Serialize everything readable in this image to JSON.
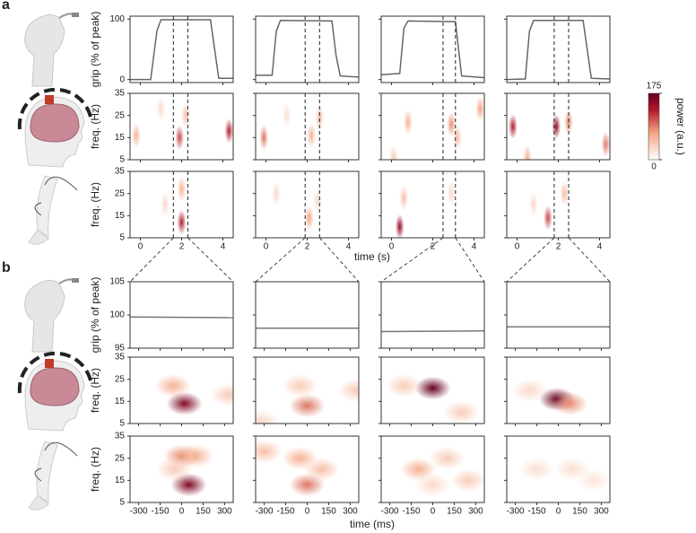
{
  "panel_labels": [
    "a",
    "b"
  ],
  "xlabels": [
    "time (s)",
    "time (ms)"
  ],
  "colorbar": {
    "label": "power (a.u.)",
    "lim": [
      0,
      175
    ],
    "ticks": [
      0,
      175
    ]
  },
  "chart_data": [
    {
      "type": "line",
      "ylabel": "grip (% of peak)",
      "color": "#666666",
      "x": [
        -0.5,
        0.5,
        0.8,
        1.0,
        3.4,
        3.6,
        3.8,
        4.5
      ],
      "values": [
        0,
        0,
        80,
        99,
        99,
        50,
        2,
        2
      ],
      "window": [
        1.6,
        2.3
      ],
      "xlim": [
        -0.5,
        4.5
      ],
      "ylim": [
        -5,
        105
      ],
      "xticks": [
        0,
        2,
        4
      ],
      "yticks": [
        0,
        100
      ]
    },
    {
      "type": "line",
      "color": "#666666",
      "x": [
        -0.5,
        0.3,
        0.5,
        0.7,
        3.2,
        3.4,
        3.6,
        4.5
      ],
      "values": [
        7,
        7,
        80,
        98,
        97,
        40,
        6,
        4
      ],
      "window": [
        1.9,
        2.6
      ],
      "xlim": [
        -0.5,
        4.5
      ],
      "ylim": [
        -5,
        105
      ],
      "xticks": [
        0,
        2,
        4
      ],
      "yticks": [
        0,
        100
      ]
    },
    {
      "type": "line",
      "color": "#666666",
      "x": [
        -0.5,
        0.4,
        0.6,
        0.8,
        3.1,
        3.25,
        3.4,
        4.5
      ],
      "values": [
        8,
        10,
        85,
        97,
        96,
        50,
        6,
        3
      ],
      "window": [
        2.5,
        3.1
      ],
      "xlim": [
        -0.5,
        4.5
      ],
      "ylim": [
        -5,
        105
      ],
      "xticks": [
        0,
        2,
        4
      ],
      "yticks": [
        0,
        100
      ]
    },
    {
      "type": "line",
      "color": "#666666",
      "x": [
        -0.5,
        0.4,
        0.6,
        0.8,
        3.2,
        3.4,
        3.6,
        4.5
      ],
      "values": [
        0,
        1,
        80,
        98,
        98,
        50,
        2,
        1
      ],
      "window": [
        1.8,
        2.5
      ],
      "xlim": [
        -0.5,
        4.5
      ],
      "ylim": [
        -5,
        105
      ],
      "xticks": [
        0,
        2,
        4
      ],
      "yticks": [
        0,
        100
      ]
    },
    {
      "type": "heatmap",
      "ylabel": "freq. (Hz)",
      "x": [
        -0.2,
        1.9,
        2.2,
        4.3,
        1.0
      ],
      "y": [
        16,
        15,
        25,
        18,
        28
      ],
      "values": [
        60,
        110,
        50,
        130,
        30
      ],
      "xlim": [
        -0.5,
        4.5
      ],
      "ylim": [
        5,
        35
      ],
      "xticks": [
        0,
        2,
        4
      ],
      "yticks": [
        5,
        15,
        25,
        35
      ]
    },
    {
      "type": "heatmap",
      "x": [
        -0.1,
        2.2,
        2.6,
        1.0
      ],
      "y": [
        15,
        16,
        24,
        25
      ],
      "values": [
        90,
        60,
        50,
        25
      ],
      "xlim": [
        -0.5,
        4.5
      ],
      "ylim": [
        5,
        35
      ],
      "xticks": [
        0,
        2,
        4
      ],
      "yticks": [
        5,
        15,
        25,
        35
      ]
    },
    {
      "type": "heatmap",
      "x": [
        0.8,
        2.9,
        3.2,
        4.3,
        0.1
      ],
      "y": [
        22,
        21,
        15,
        28,
        6
      ],
      "values": [
        60,
        80,
        50,
        70,
        40
      ],
      "xlim": [
        -0.5,
        4.5
      ],
      "ylim": [
        5,
        35
      ],
      "xticks": [
        0,
        2,
        4
      ],
      "yticks": [
        5,
        15,
        25,
        35
      ]
    },
    {
      "type": "heatmap",
      "x": [
        -0.2,
        1.9,
        2.5,
        4.3,
        0.5
      ],
      "y": [
        20,
        20,
        22,
        12,
        6
      ],
      "values": [
        130,
        150,
        80,
        90,
        60
      ],
      "xlim": [
        -0.5,
        4.5
      ],
      "ylim": [
        5,
        35
      ],
      "xticks": [
        0,
        2,
        4
      ],
      "yticks": [
        5,
        15,
        25,
        35
      ]
    },
    {
      "type": "heatmap",
      "ylabel": "freq. (Hz)",
      "x": [
        2.0,
        2.0,
        1.2
      ],
      "y": [
        12,
        27,
        20
      ],
      "values": [
        130,
        60,
        30
      ],
      "xlim": [
        -0.5,
        4.5
      ],
      "ylim": [
        5,
        35
      ],
      "xticks": [
        0,
        2,
        4
      ],
      "yticks": [
        5,
        15,
        25,
        35
      ]
    },
    {
      "type": "heatmap",
      "x": [
        2.1,
        0.5,
        2.5
      ],
      "y": [
        14,
        25,
        22
      ],
      "values": [
        70,
        30,
        30
      ],
      "xlim": [
        -0.5,
        4.5
      ],
      "ylim": [
        5,
        35
      ],
      "xticks": [
        0,
        2,
        4
      ],
      "yticks": [
        5,
        15,
        25,
        35
      ]
    },
    {
      "type": "heatmap",
      "x": [
        0.4,
        0.6,
        2.9
      ],
      "y": [
        10,
        23,
        25
      ],
      "values": [
        150,
        50,
        30
      ],
      "xlim": [
        -0.5,
        4.5
      ],
      "ylim": [
        5,
        35
      ],
      "xticks": [
        0,
        2,
        4
      ],
      "yticks": [
        5,
        15,
        25,
        35
      ]
    },
    {
      "type": "heatmap",
      "x": [
        1.5,
        2.3,
        0.8
      ],
      "y": [
        14,
        25,
        20
      ],
      "values": [
        110,
        50,
        30
      ],
      "xlim": [
        -0.5,
        4.5
      ],
      "ylim": [
        5,
        35
      ],
      "xticks": [
        0,
        2,
        4
      ],
      "yticks": [
        5,
        15,
        25,
        35
      ]
    },
    {
      "type": "line",
      "ylabel": "grip (% of peak)",
      "color": "#777777",
      "x": [
        -360,
        360
      ],
      "values": [
        99.7,
        99.6
      ],
      "xlim": [
        -360,
        360
      ],
      "ylim": [
        95,
        105
      ],
      "xticks": [
        -300,
        -150,
        0,
        150,
        300
      ],
      "yticks": [
        95,
        100,
        105
      ]
    },
    {
      "type": "line",
      "color": "#777777",
      "x": [
        -360,
        360
      ],
      "values": [
        98.0,
        98.0
      ],
      "xlim": [
        -360,
        360
      ],
      "ylim": [
        95,
        105
      ],
      "xticks": [
        -300,
        -150,
        0,
        150,
        300
      ],
      "yticks": [
        95,
        100,
        105
      ]
    },
    {
      "type": "line",
      "color": "#777777",
      "x": [
        -360,
        360
      ],
      "values": [
        97.5,
        97.6
      ],
      "xlim": [
        -360,
        360
      ],
      "ylim": [
        95,
        105
      ],
      "xticks": [
        -300,
        -150,
        0,
        150,
        300
      ],
      "yticks": [
        95,
        100,
        105
      ]
    },
    {
      "type": "line",
      "color": "#777777",
      "x": [
        -360,
        360
      ],
      "values": [
        98.2,
        98.2
      ],
      "xlim": [
        -360,
        360
      ],
      "ylim": [
        95,
        105
      ],
      "xticks": [
        -300,
        -150,
        0,
        150,
        300
      ],
      "yticks": [
        95,
        100,
        105
      ]
    },
    {
      "type": "heatmap",
      "ylabel": "freq. (Hz)",
      "x": [
        20,
        -60,
        330
      ],
      "y": [
        14,
        22,
        18
      ],
      "values": [
        160,
        60,
        40
      ],
      "xlim": [
        -360,
        360
      ],
      "ylim": [
        5,
        35
      ],
      "xticks": [
        -300,
        -150,
        0,
        150,
        300
      ],
      "yticks": [
        5,
        15,
        25,
        35
      ]
    },
    {
      "type": "heatmap",
      "x": [
        0,
        -50,
        340,
        -320
      ],
      "y": [
        13,
        22,
        20,
        6
      ],
      "values": [
        90,
        40,
        40,
        30
      ],
      "xlim": [
        -360,
        360
      ],
      "ylim": [
        5,
        35
      ],
      "xticks": [
        -300,
        -150,
        0,
        150,
        300
      ],
      "yticks": [
        5,
        15,
        25,
        35
      ]
    },
    {
      "type": "heatmap",
      "x": [
        0,
        200,
        -200
      ],
      "y": [
        21,
        10,
        22
      ],
      "values": [
        175,
        40,
        40
      ],
      "xlim": [
        -360,
        360
      ],
      "ylim": [
        5,
        35
      ],
      "xticks": [
        -300,
        -150,
        0,
        150,
        300
      ],
      "yticks": [
        5,
        15,
        25,
        35
      ]
    },
    {
      "type": "heatmap",
      "x": [
        -10,
        80,
        -200
      ],
      "y": [
        16,
        14,
        20
      ],
      "values": [
        175,
        80,
        30
      ],
      "xlim": [
        -360,
        360
      ],
      "ylim": [
        5,
        35
      ],
      "xticks": [
        -300,
        -150,
        0,
        150,
        300
      ],
      "yticks": [
        5,
        15,
        25,
        35
      ]
    },
    {
      "type": "heatmap",
      "ylabel": "freq. (Hz)",
      "x": [
        50,
        0,
        100,
        -50
      ],
      "y": [
        13,
        26,
        26,
        20
      ],
      "values": [
        160,
        80,
        60,
        40
      ],
      "xlim": [
        -360,
        360
      ],
      "ylim": [
        5,
        35
      ],
      "xticks": [
        -300,
        -150,
        0,
        150,
        300
      ],
      "yticks": [
        5,
        15,
        25,
        35
      ]
    },
    {
      "type": "heatmap",
      "x": [
        0,
        -50,
        100,
        -300
      ],
      "y": [
        13,
        25,
        20,
        28
      ],
      "values": [
        90,
        60,
        50,
        50
      ],
      "xlim": [
        -360,
        360
      ],
      "ylim": [
        5,
        35
      ],
      "xticks": [
        -300,
        -150,
        0,
        150,
        300
      ],
      "yticks": [
        5,
        15,
        25,
        35
      ]
    },
    {
      "type": "heatmap",
      "x": [
        -100,
        100,
        250,
        0
      ],
      "y": [
        20,
        25,
        15,
        13
      ],
      "values": [
        60,
        40,
        40,
        30
      ],
      "xlim": [
        -360,
        360
      ],
      "ylim": [
        5,
        35
      ],
      "xticks": [
        -300,
        -150,
        0,
        150,
        300
      ],
      "yticks": [
        5,
        15,
        25,
        35
      ]
    },
    {
      "type": "heatmap",
      "x": [
        -150,
        100,
        250
      ],
      "y": [
        20,
        20,
        15
      ],
      "values": [
        25,
        25,
        20
      ],
      "xlim": [
        -360,
        360
      ],
      "ylim": [
        5,
        35
      ],
      "xticks": [
        -300,
        -150,
        0,
        150,
        300
      ],
      "yticks": [
        5,
        15,
        25,
        35
      ]
    }
  ]
}
